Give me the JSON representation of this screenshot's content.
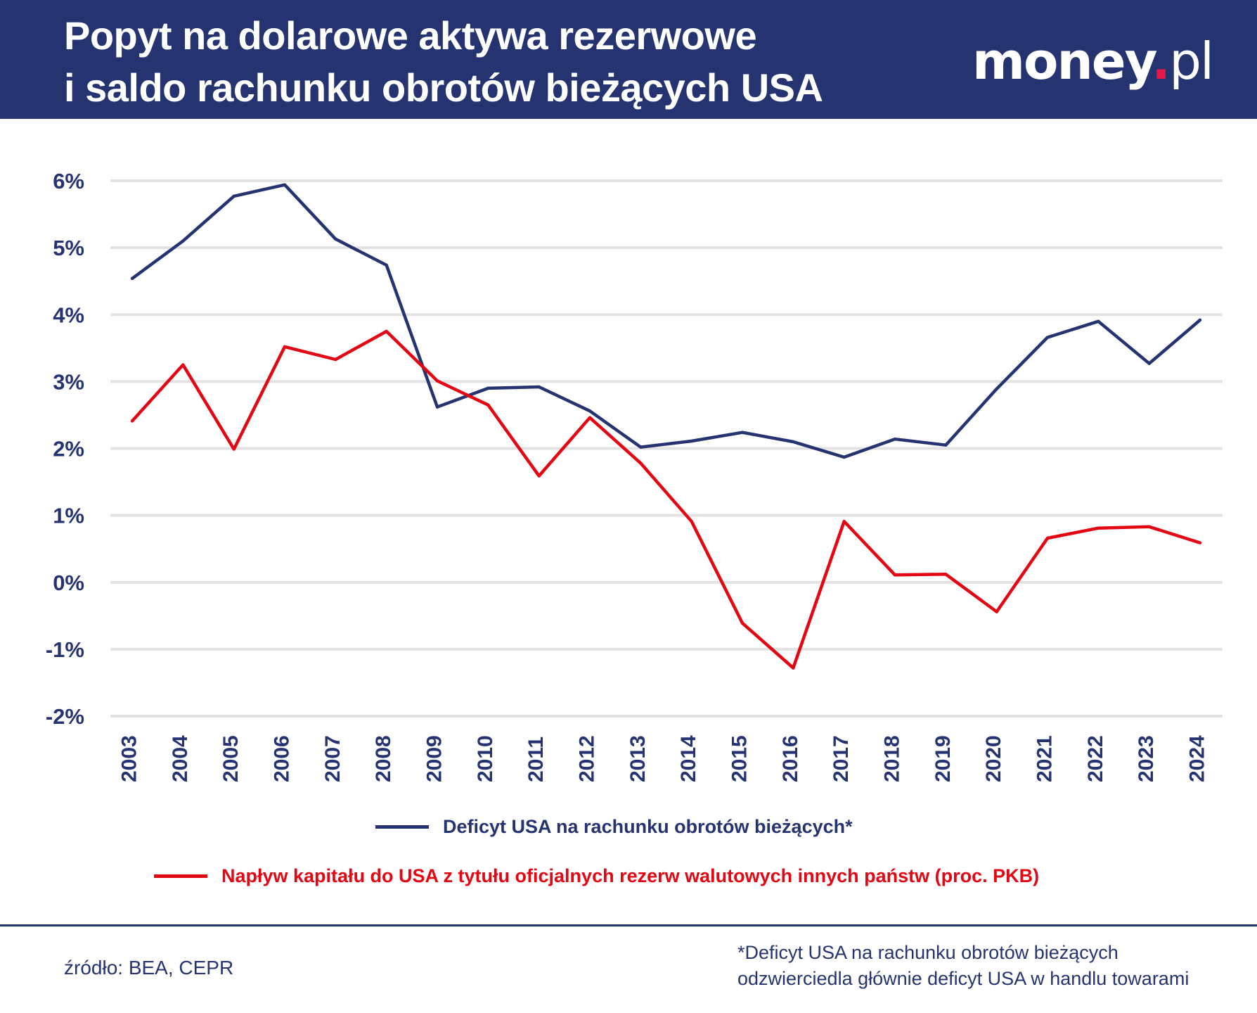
{
  "header": {
    "title_line1": "Popyt na dolarowe aktywa rezerwowe",
    "title_line2": "i saldo rachunku obrotów bieżących USA",
    "logo": "money.pl"
  },
  "colors": {
    "header_bg": "#253470",
    "deficit": "#253470",
    "inflow": "#e30613",
    "grid": "#e2e2e2",
    "logo_dot": "#e4174a"
  },
  "chart_data": {
    "type": "line",
    "x": [
      "2003",
      "2004",
      "2005",
      "2006",
      "2007",
      "2008",
      "2009",
      "2010",
      "2011",
      "2012",
      "2013",
      "2014",
      "2015",
      "2016",
      "2017",
      "2018",
      "2019",
      "2020",
      "2021",
      "2022",
      "2023",
      "2024"
    ],
    "ylim": [
      -2,
      6
    ],
    "yticks": [
      "-2%",
      "-1%",
      "0%",
      "1%",
      "2%",
      "3%",
      "4%",
      "5%",
      "6%"
    ],
    "grid": true,
    "legend_placement": "bottom",
    "series": [
      {
        "name": "Deficyt USA na rachunku obrotów bieżących*",
        "color": "#253470",
        "values": [
          4.54,
          5.1,
          5.77,
          5.94,
          5.13,
          4.74,
          2.62,
          2.9,
          2.92,
          2.56,
          2.02,
          2.11,
          2.24,
          2.1,
          1.87,
          2.14,
          2.05,
          2.89,
          3.66,
          3.9,
          3.27,
          3.92
        ]
      },
      {
        "name": "Napływ kapitału do USA z tytułu oficjalnych rezerw walutowych innych państw (proc. PKB)",
        "color": "#e30613",
        "values": [
          2.41,
          3.25,
          1.99,
          3.52,
          3.33,
          3.75,
          3.01,
          2.65,
          1.59,
          2.46,
          1.78,
          0.91,
          -0.61,
          -1.28,
          0.91,
          0.11,
          0.12,
          -0.44,
          0.66,
          0.81,
          0.83,
          0.59
        ]
      }
    ]
  },
  "footer": {
    "source": "źródło: BEA, CEPR",
    "note_line1": "*Deficyt USA na rachunku obrotów bieżących",
    "note_line2": "odzwierciedla głównie deficyt USA w handlu towarami"
  }
}
